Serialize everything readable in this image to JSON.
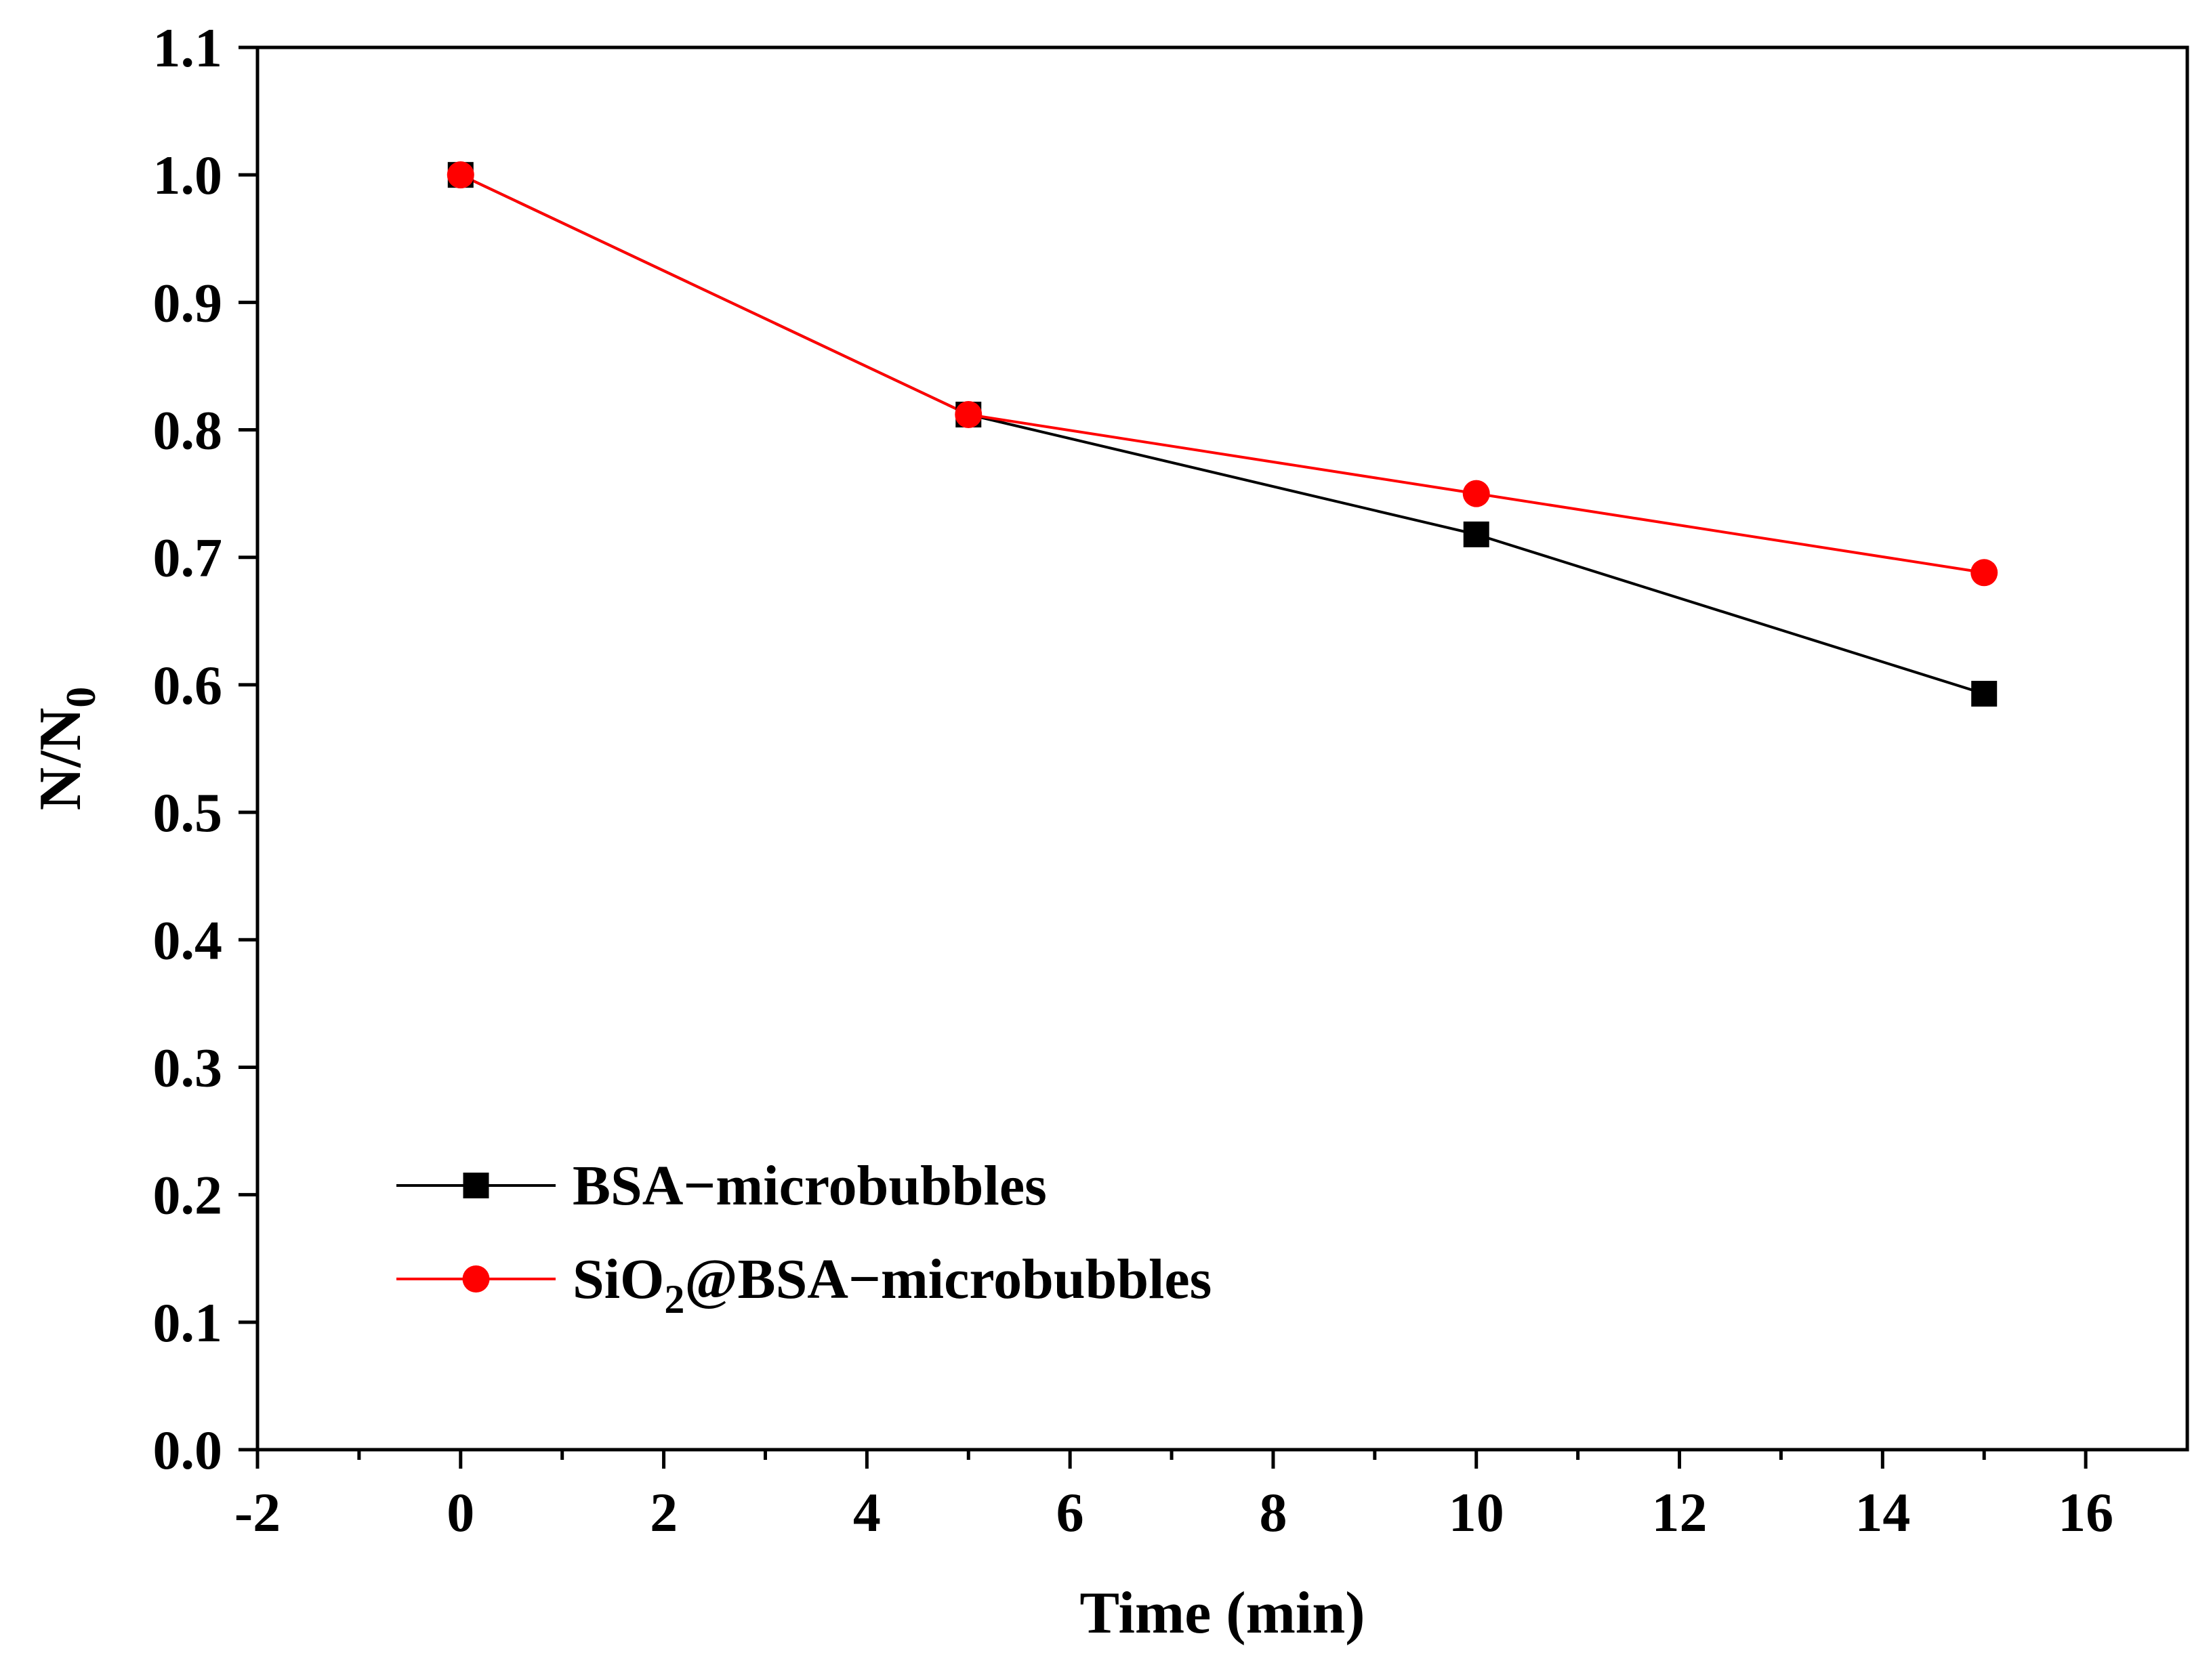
{
  "chart_data": {
    "type": "line",
    "title": "",
    "xlabel": "Time (min)",
    "ylabel_main": "N/N",
    "ylabel_sub": "0",
    "xlim": [
      -2,
      17
    ],
    "ylim": [
      0,
      1.1
    ],
    "xticks": [
      -2,
      0,
      2,
      4,
      6,
      8,
      10,
      12,
      14,
      16
    ],
    "xtick_labels": [
      "-2",
      "0",
      "2",
      "4",
      "6",
      "8",
      "10",
      "12",
      "14",
      "16"
    ],
    "yticks": [
      0,
      0.1,
      0.2,
      0.3,
      0.4,
      0.5,
      0.6,
      0.7,
      0.8,
      0.9,
      1.0,
      1.1
    ],
    "ytick_labels": [
      "0.0",
      "0.1",
      "0.2",
      "0.3",
      "0.4",
      "0.5",
      "0.6",
      "0.7",
      "0.8",
      "0.9",
      "1.0",
      "1.1"
    ],
    "grid": false,
    "legend_position": "bottom-left",
    "series": [
      {
        "name": "BSA−microbubbles",
        "legend_parts": [
          "BSA−microbubbles"
        ],
        "marker": "square",
        "color": "#000000",
        "x": [
          0,
          5,
          10,
          15
        ],
        "y": [
          1.0,
          0.812,
          0.718,
          0.593
        ]
      },
      {
        "name": "SiO2@BSA−microbubbles",
        "legend_parts": [
          "SiO",
          "2",
          "@BSA−microbubbles"
        ],
        "marker": "circle",
        "color": "#ff0000",
        "x": [
          0,
          5,
          10,
          15
        ],
        "y": [
          1.0,
          0.812,
          0.75,
          0.688
        ]
      }
    ]
  }
}
